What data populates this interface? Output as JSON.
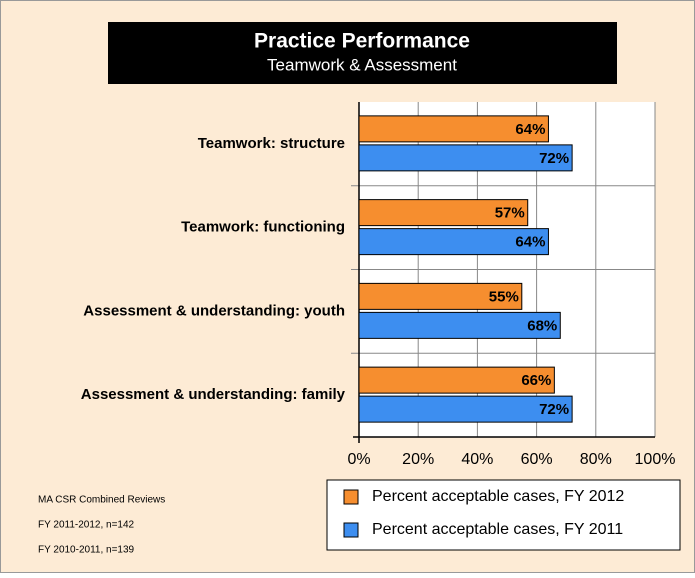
{
  "chart_data": {
    "type": "bar",
    "orientation": "horizontal",
    "title": "Practice Performance",
    "subtitle": "Teamwork & Assessment",
    "categories": [
      "Teamwork: structure",
      "Teamwork: functioning",
      "Assessment & understanding: youth",
      "Assessment & understanding: family"
    ],
    "series": [
      {
        "name": "Percent acceptable cases, FY 2012",
        "color": "#f68e2f",
        "values": [
          64,
          57,
          55,
          66
        ],
        "value_labels": [
          "64%",
          "57%",
          "55%",
          "66%"
        ]
      },
      {
        "name": "Percent acceptable cases, FY 2011",
        "color": "#3d8ef0",
        "values": [
          72,
          64,
          68,
          72
        ],
        "value_labels": [
          "72%",
          "64%",
          "68%",
          "72%"
        ]
      }
    ],
    "xlim": [
      0,
      100
    ],
    "xticks": [
      {
        "value": 0,
        "label": "0%"
      },
      {
        "value": 20,
        "label": "20%"
      },
      {
        "value": 40,
        "label": "40%"
      },
      {
        "value": 60,
        "label": "60%"
      },
      {
        "value": 80,
        "label": "80%"
      },
      {
        "value": 100,
        "label": "100%"
      }
    ],
    "grid": true,
    "notes": [
      "MA CSR Combined Reviews",
      "FY 2011-2012, n=142",
      "FY 2010-2011, n=139"
    ]
  }
}
